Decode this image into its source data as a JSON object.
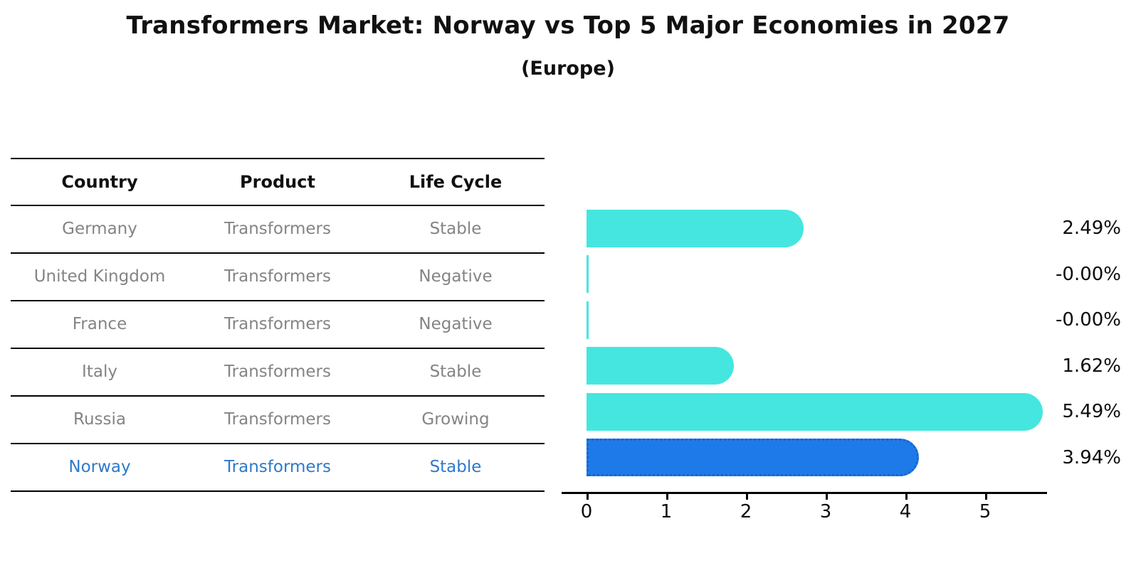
{
  "title": "Transformers Market: Norway vs Top 5 Major Economies in 2027",
  "subtitle": "(Europe)",
  "table": {
    "headers": [
      "Country",
      "Product",
      "Life Cycle"
    ],
    "rows": [
      {
        "country": "Germany",
        "product": "Transformers",
        "life_cycle": "Stable",
        "highlight": false
      },
      {
        "country": "United Kingdom",
        "product": "Transformers",
        "life_cycle": "Negative",
        "highlight": false
      },
      {
        "country": "France",
        "product": "Transformers",
        "life_cycle": "Negative",
        "highlight": false
      },
      {
        "country": "Italy",
        "product": "Transformers",
        "life_cycle": "Stable",
        "highlight": false
      },
      {
        "country": "Russia",
        "product": "Transformers",
        "life_cycle": "Growing",
        "highlight": false
      },
      {
        "country": "Norway",
        "product": "Transformers",
        "life_cycle": "Stable",
        "highlight": true
      }
    ]
  },
  "chart_data": {
    "type": "bar",
    "orientation": "horizontal",
    "title": "Transformers Market: Norway vs Top 5 Major Economies in 2027",
    "subtitle": "(Europe)",
    "categories": [
      "Germany",
      "United Kingdom",
      "France",
      "Italy",
      "Russia",
      "Norway"
    ],
    "values": [
      2.49,
      -0.0,
      -0.0,
      1.62,
      5.49,
      3.94
    ],
    "value_labels": [
      "2.49%",
      "-0.00%",
      "-0.00%",
      "1.62%",
      "5.49%",
      "3.94%"
    ],
    "x_ticks": [
      "0",
      "1",
      "2",
      "3",
      "4",
      "5"
    ],
    "xlim": [
      0,
      5.8
    ],
    "grid": false,
    "legend": false,
    "bar_color": "#45e6df",
    "highlight_color": "#1e7ae8",
    "highlight_index": 5
  },
  "colors": {
    "bar": "#45e6df",
    "highlight_bar": "#1e7ae8",
    "highlight_border": "#1565d0",
    "highlight_text": "#2e79c9",
    "table_text": "#848484",
    "heading_text": "#111111"
  }
}
